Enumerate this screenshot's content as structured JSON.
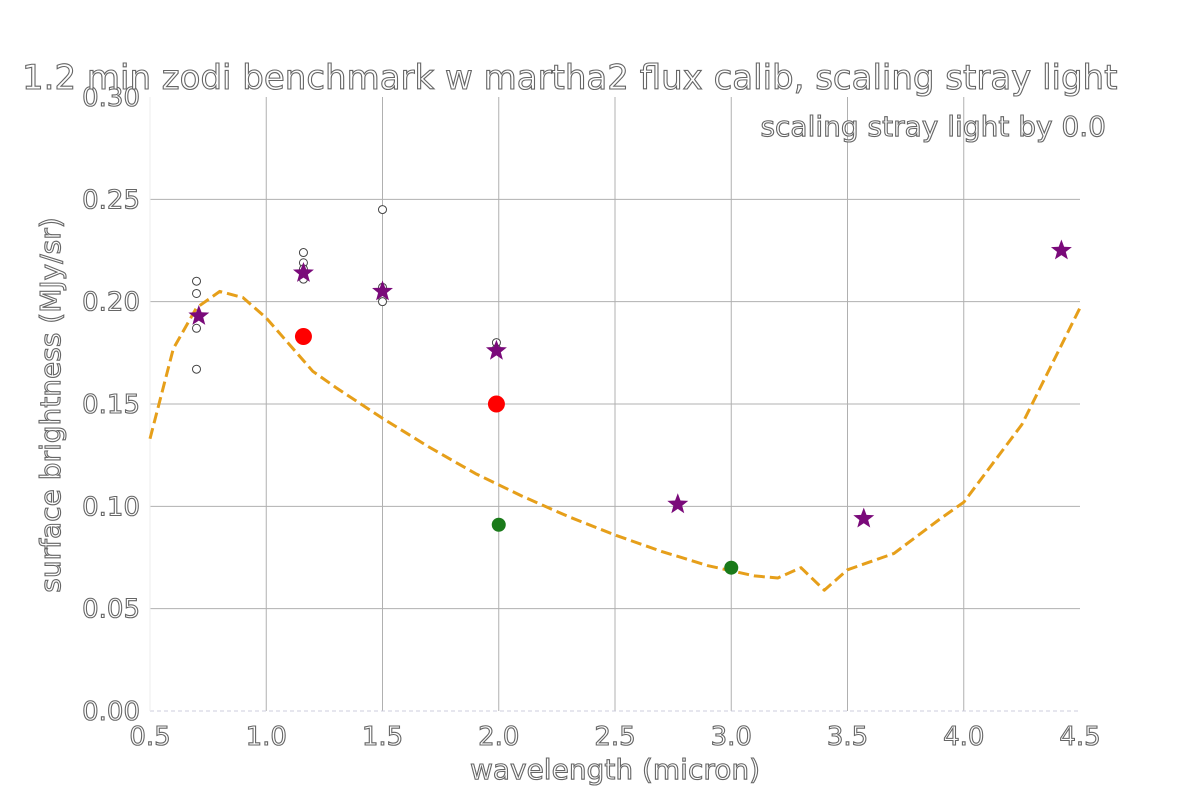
{
  "chart_data": {
    "type": "scatter",
    "title": "1.2 min zodi benchmark w martha2 flux calib, scaling stray light",
    "annotation": "scaling stray light by 0.0",
    "xlabel": "wavelength (micron)",
    "ylabel": "surface brightness (MJy/sr)",
    "xlim": [
      0.5,
      4.5
    ],
    "ylim": [
      0.0,
      0.3
    ],
    "xticks": [
      "0.5",
      "1.0",
      "1.5",
      "2.0",
      "2.5",
      "3.0",
      "3.5",
      "4.0",
      "4.5"
    ],
    "yticks": [
      "0.00",
      "0.05",
      "0.10",
      "0.15",
      "0.20",
      "0.25",
      "0.30"
    ],
    "grid": true,
    "colors": {
      "model_line": "#e69f1a",
      "red_points": "#ff0000",
      "green_points": "#1a7a1a",
      "star_points": "#7a0a7a",
      "open_circles": "#444444",
      "grid": "#b0b0b0"
    },
    "series": [
      {
        "kind": "line-dashed",
        "color": "#e69f1a",
        "x": [
          0.5,
          0.6,
          0.7,
          0.8,
          0.9,
          1.0,
          1.1,
          1.2,
          1.3,
          1.5,
          1.7,
          1.9,
          2.1,
          2.3,
          2.5,
          2.7,
          2.9,
          3.1,
          3.2,
          3.3,
          3.4,
          3.5,
          3.7,
          3.9,
          4.0,
          4.25,
          4.5
        ],
        "y": [
          0.133,
          0.177,
          0.197,
          0.205,
          0.202,
          0.192,
          0.179,
          0.166,
          0.158,
          0.143,
          0.129,
          0.116,
          0.105,
          0.095,
          0.086,
          0.078,
          0.071,
          0.066,
          0.065,
          0.07,
          0.059,
          0.069,
          0.077,
          0.094,
          0.102,
          0.14,
          0.197
        ]
      },
      {
        "kind": "filled-circle",
        "color": "#ff0000",
        "x": [
          1.16,
          1.99
        ],
        "y": [
          0.183,
          0.15
        ]
      },
      {
        "kind": "filled-circle",
        "color": "#1a7a1a",
        "x": [
          2.0,
          3.0
        ],
        "y": [
          0.091,
          0.07
        ]
      },
      {
        "kind": "star",
        "color": "#7a0a7a",
        "x": [
          0.71,
          1.16,
          1.5,
          1.99,
          2.77,
          3.57,
          4.42
        ],
        "y": [
          0.193,
          0.214,
          0.205,
          0.176,
          0.101,
          0.094,
          0.225
        ]
      },
      {
        "kind": "open-circle",
        "color": "#444444",
        "x": [
          0.7,
          0.7,
          0.7,
          0.7,
          1.16,
          1.16,
          1.16,
          1.16,
          1.5,
          1.5,
          1.5,
          1.5,
          1.99,
          1.99
        ],
        "y": [
          0.21,
          0.204,
          0.187,
          0.167,
          0.224,
          0.219,
          0.216,
          0.211,
          0.245,
          0.207,
          0.202,
          0.2,
          0.18,
          0.177
        ]
      }
    ]
  }
}
